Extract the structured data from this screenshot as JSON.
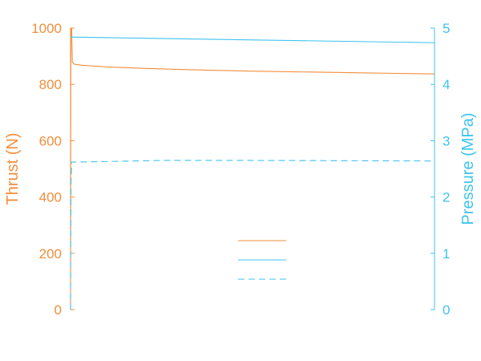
{
  "chart_data": {
    "type": "line",
    "title": "",
    "xlabel": "",
    "x_ticks": [],
    "xlim": [
      0,
      10
    ],
    "grid": false,
    "y_left": {
      "label": "Thrust (N)",
      "color": "#F28E3C",
      "lim": [
        0,
        1000
      ],
      "ticks": [
        0,
        200,
        400,
        600,
        800,
        1000
      ]
    },
    "y_right": {
      "label": "Pressure (MPa)",
      "color": "#3EC3EF",
      "lim": [
        0,
        5
      ],
      "ticks": [
        0,
        1,
        2,
        3,
        4,
        5
      ]
    },
    "series": [
      {
        "axis": "left",
        "color": "#F28E3C",
        "dash": "solid",
        "points": [
          [
            0,
            0
          ],
          [
            0.005,
            700
          ],
          [
            0.01,
            1000
          ],
          [
            0.03,
            1000
          ],
          [
            0.05,
            880
          ],
          [
            0.1,
            872
          ],
          [
            0.3,
            868
          ],
          [
            1,
            862
          ],
          [
            2,
            857
          ],
          [
            3,
            853
          ],
          [
            4,
            850
          ],
          [
            5,
            847
          ],
          [
            6,
            845
          ],
          [
            7,
            843
          ],
          [
            8,
            841
          ],
          [
            9,
            839
          ],
          [
            10,
            837
          ]
        ]
      },
      {
        "axis": "right",
        "color": "#3EC3EF",
        "dash": "solid",
        "points": [
          [
            0,
            4.84
          ],
          [
            10,
            4.74
          ]
        ]
      },
      {
        "axis": "right",
        "color": "#3EC3EF",
        "dash": "dashed",
        "points": [
          [
            0,
            0
          ],
          [
            0.005,
            1.3
          ],
          [
            0.015,
            2.3
          ],
          [
            0.03,
            2.62
          ],
          [
            1,
            2.63
          ],
          [
            2.5,
            2.65
          ],
          [
            5,
            2.65
          ],
          [
            10,
            2.64
          ]
        ]
      }
    ],
    "legend": {
      "placement": "bottom-center",
      "entries": [
        "",
        "",
        ""
      ]
    }
  }
}
